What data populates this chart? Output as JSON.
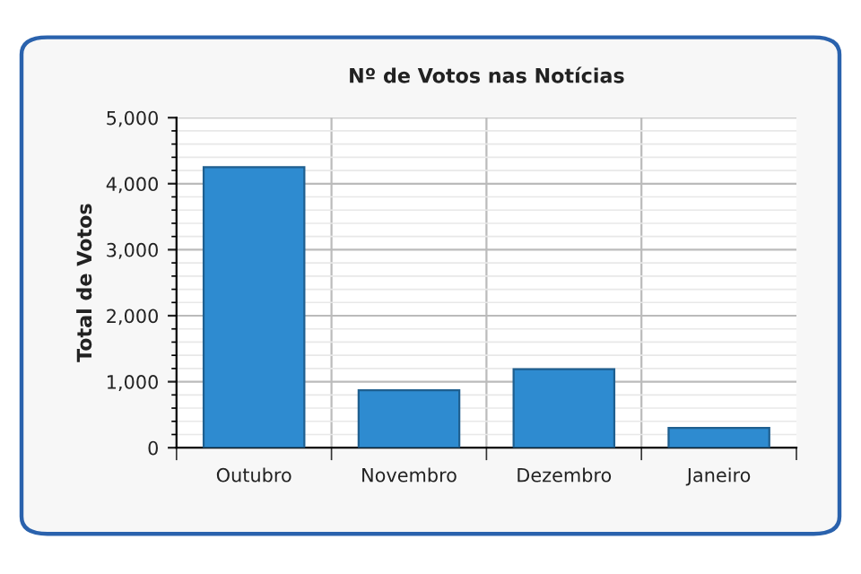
{
  "chart_data": {
    "type": "bar",
    "title": "Nº de Votos nas Notícias",
    "ylabel": "Total de Votos",
    "categories": [
      "Outubro",
      "Novembro",
      "Dezembro",
      "Janeiro"
    ],
    "values": [
      4250,
      870,
      1190,
      300
    ],
    "color": "#2e8bd0",
    "ylim": [
      0,
      5000
    ],
    "yticks": [
      {
        "value": 0,
        "label": "0"
      },
      {
        "value": 1000,
        "label": "1,000"
      },
      {
        "value": 2000,
        "label": "2,000"
      },
      {
        "value": 3000,
        "label": "3,000"
      },
      {
        "value": 4000,
        "label": "4,000"
      },
      {
        "value": 5000,
        "label": "5,000"
      }
    ],
    "grid": true
  }
}
